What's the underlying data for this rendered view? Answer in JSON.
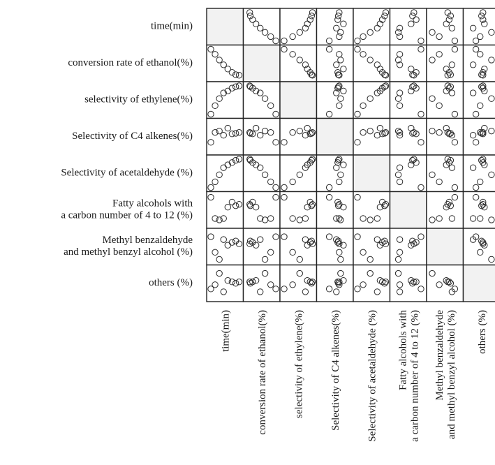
{
  "chart_data": {
    "type": "scatter",
    "subtype": "scatter-plot-matrix",
    "variables": [
      {
        "row_label": [
          "time(min)"
        ],
        "col_label": [
          "time(min)"
        ]
      },
      {
        "row_label": [
          "conversion rate of ethanol(%)"
        ],
        "col_label": [
          "conversion rate of ethanol(%)"
        ]
      },
      {
        "row_label": [
          "selectivity of ethylene(%)"
        ],
        "col_label": [
          "selectivity of ethylene(%)"
        ]
      },
      {
        "row_label": [
          "Selectivity of C4 alkenes(%)"
        ],
        "col_label": [
          "Selectivity of C4 alkenes(%)"
        ]
      },
      {
        "row_label": [
          "Selectivity of acetaldehyde (%)"
        ],
        "col_label": [
          "Selectivity of acetaldehyde (%)"
        ]
      },
      {
        "row_label": [
          "Fatty alcohols with",
          "a carbon number of 4 to 12 (%)"
        ],
        "col_label": [
          "Fatty alcohols with",
          "a carbon number of 4 to 12 (%)"
        ]
      },
      {
        "row_label": [
          "Methyl benzaldehyde",
          "and methyl benzyl alcohol (%)"
        ],
        "col_label": [
          "Methyl benzaldehyde",
          "and methyl benzyl alcohol (%)"
        ]
      },
      {
        "row_label": [
          "others (%)"
        ],
        "col_label": [
          "others (%)"
        ]
      }
    ],
    "observations": [
      [
        0.0,
        1.0,
        0.0,
        0.3,
        0.0,
        0.95,
        0.85,
        0.3
      ],
      [
        0.15,
        0.82,
        0.3,
        0.65,
        0.2,
        0.2,
        0.3,
        0.45
      ],
      [
        0.3,
        0.62,
        0.55,
        0.7,
        0.45,
        0.15,
        0.05,
        0.85
      ],
      [
        0.45,
        0.45,
        0.75,
        0.55,
        0.7,
        0.2,
        0.75,
        0.2
      ],
      [
        0.6,
        0.3,
        0.82,
        0.8,
        0.8,
        0.6,
        0.55,
        0.6
      ],
      [
        0.75,
        0.18,
        0.92,
        0.6,
        0.88,
        0.78,
        0.65,
        0.55
      ],
      [
        0.88,
        0.1,
        0.97,
        0.62,
        0.96,
        0.65,
        0.7,
        0.5
      ],
      [
        1.0,
        0.08,
        1.0,
        0.65,
        1.0,
        0.7,
        0.6,
        0.55
      ]
    ],
    "diagonal": "blank",
    "marker": "open-circle",
    "grid": false,
    "legend": "none"
  }
}
